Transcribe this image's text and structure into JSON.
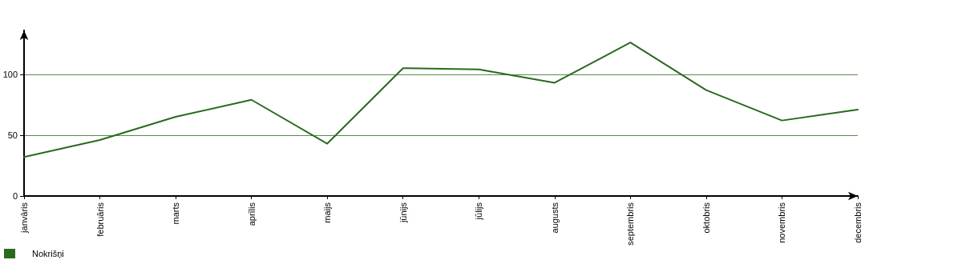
{
  "chart_data": {
    "type": "line",
    "categories": [
      "janvāris",
      "februāris",
      "marts",
      "aprīlis",
      "maijs",
      "jūnijs",
      "jūlijs",
      "augusts",
      "septembris",
      "oktobris",
      "novembris",
      "decembris"
    ],
    "series": [
      {
        "name": "Nokrišņi",
        "color": "#2a6a1f",
        "values": [
          32,
          46,
          65,
          79,
          43,
          105,
          104,
          93,
          126,
          87,
          62,
          71
        ]
      }
    ],
    "ylim": [
      0,
      136
    ],
    "yticks": [
      0,
      50,
      100
    ],
    "grid": "y",
    "legend": "bottom left",
    "marker": "none",
    "line_style": "solid"
  }
}
